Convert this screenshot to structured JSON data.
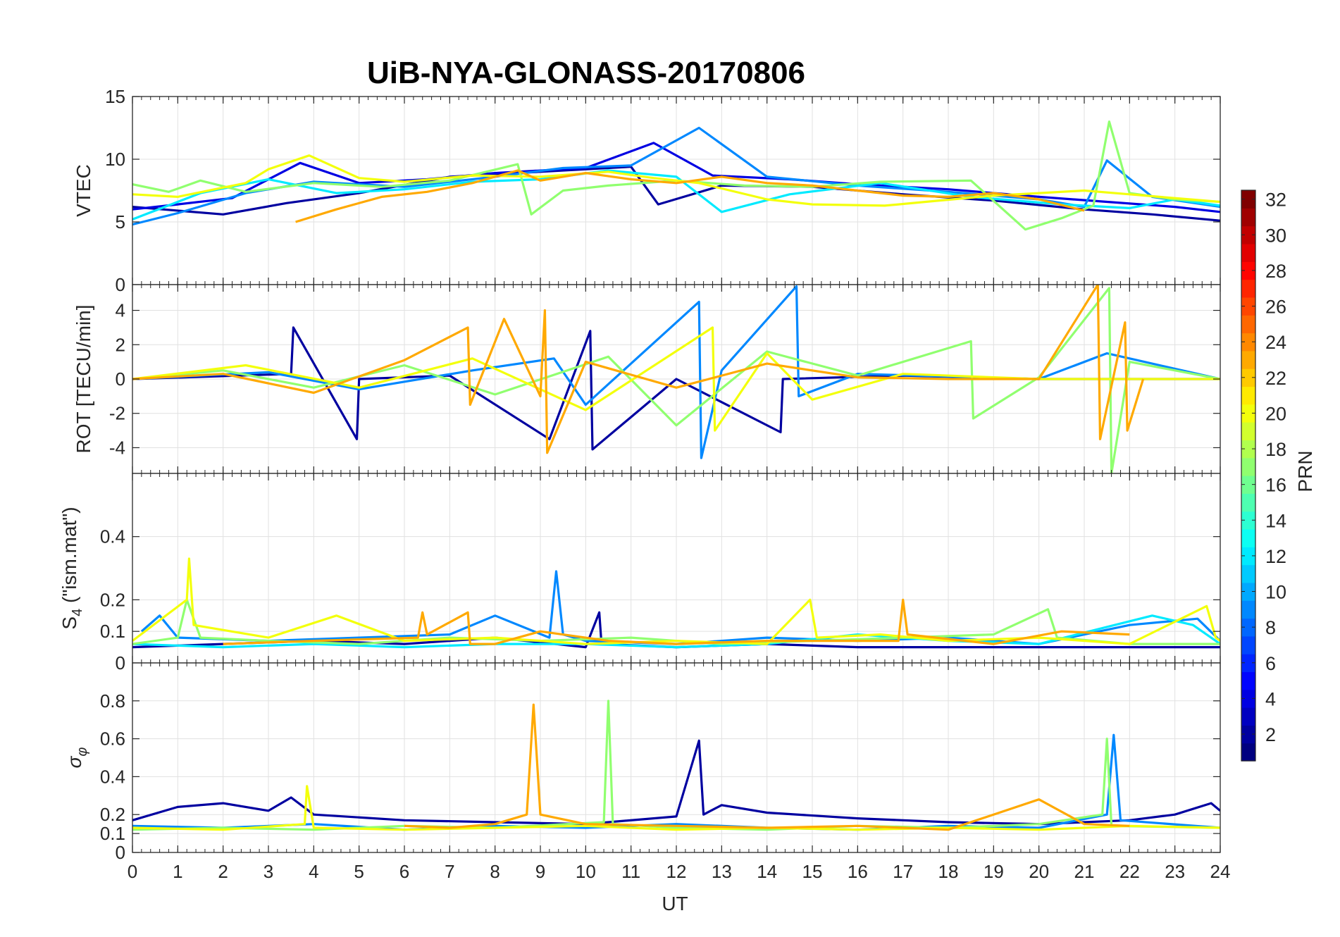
{
  "figure": {
    "title": "UiB-NYA-GLONASS-20170806",
    "xlabel": "UT"
  },
  "colorbar": {
    "label": "PRN",
    "range": [
      1,
      32
    ],
    "ticks": [
      2,
      4,
      6,
      8,
      10,
      12,
      14,
      16,
      18,
      20,
      22,
      24,
      26,
      28,
      30,
      32
    ],
    "colormap": "jet"
  },
  "chart_data": [
    {
      "type": "line",
      "panel": "vtec",
      "ylabel": "VTEC",
      "xlim": [
        0,
        24
      ],
      "ylim": [
        0,
        15
      ],
      "yticks": [
        0,
        5,
        10,
        15
      ],
      "xticks": [
        0,
        1,
        2,
        3,
        4,
        5,
        6,
        7,
        8,
        9,
        10,
        11,
        12,
        13,
        14,
        15,
        16,
        17,
        18,
        19,
        20,
        21,
        22,
        23,
        24
      ],
      "grid": true,
      "series": [
        {
          "prn": 2,
          "x": [
            0,
            2.0,
            3.4,
            5.0,
            7.0,
            9.0,
            11.0,
            11.6,
            13.0,
            15.0,
            17.0,
            19.0,
            21.0,
            22.5,
            24.0
          ],
          "y": [
            6.2,
            5.6,
            6.5,
            7.3,
            8.6,
            9.0,
            9.4,
            6.4,
            7.9,
            7.8,
            7.2,
            6.7,
            6.0,
            5.6,
            5.1
          ]
        },
        {
          "prn": 4,
          "x": [
            0,
            1.0,
            2.2,
            3.7,
            5.0,
            6.5,
            8.0,
            10.0,
            11.5,
            12.8,
            14.5,
            16.0,
            18.0,
            20.0,
            21.5,
            23.0,
            24.0
          ],
          "y": [
            6.0,
            6.4,
            6.9,
            9.7,
            8.1,
            8.4,
            8.9,
            9.3,
            11.3,
            8.7,
            8.4,
            8.0,
            7.6,
            7.0,
            6.6,
            6.2,
            5.8
          ]
        },
        {
          "prn": 9,
          "x": [
            0,
            1.0,
            2.5,
            4.0,
            6.0,
            8.0,
            9.5,
            11.0,
            12.5,
            14.0,
            16.0,
            18.0,
            20.0,
            21.0,
            21.5,
            22.5,
            24.0
          ],
          "y": [
            4.8,
            5.7,
            7.3,
            8.2,
            7.8,
            8.6,
            9.3,
            9.5,
            12.5,
            8.6,
            7.9,
            7.4,
            6.8,
            6.2,
            9.9,
            7.0,
            6.2
          ]
        },
        {
          "prn": 12,
          "x": [
            0,
            1.5,
            3.0,
            4.5,
            6.0,
            7.5,
            9.0,
            10.5,
            12.0,
            13.0,
            14.5,
            16.5,
            18.5,
            20.5,
            22.0,
            23.0,
            24.0
          ],
          "y": [
            5.2,
            7.3,
            8.4,
            7.3,
            7.6,
            8.2,
            8.4,
            9.1,
            8.6,
            5.8,
            7.2,
            8.1,
            7.0,
            6.4,
            6.1,
            6.8,
            6.3
          ]
        },
        {
          "prn": 17,
          "x": [
            0,
            0.8,
            1.5,
            2.5,
            4.0,
            5.5,
            7.0,
            8.5,
            8.8,
            9.5,
            10.5,
            12.0,
            13.5,
            15.0,
            16.5,
            18.5,
            19.7,
            20.5,
            21.2,
            21.55,
            22.0,
            23.0,
            24.0
          ],
          "y": [
            8.0,
            7.4,
            8.3,
            7.4,
            8.1,
            7.8,
            8.3,
            9.6,
            5.6,
            7.5,
            7.9,
            8.3,
            7.9,
            7.8,
            8.2,
            8.3,
            4.4,
            5.3,
            6.3,
            13.0,
            7.3,
            6.8,
            6.6
          ]
        },
        {
          "prn": 20,
          "x": [
            0,
            1.0,
            2.5,
            3.0,
            3.9,
            5.0,
            6.0,
            7.5,
            9.0,
            10.5,
            11.5,
            12.5,
            14.0,
            15.0,
            16.6,
            17.5,
            19.0,
            20.0,
            21.0,
            22.0,
            23.0,
            24.0
          ],
          "y": [
            7.2,
            7.0,
            8.1,
            9.2,
            10.3,
            8.5,
            8.2,
            8.7,
            8.6,
            9.0,
            8.5,
            8.1,
            6.8,
            6.4,
            6.3,
            6.6,
            7.1,
            7.3,
            7.5,
            7.2,
            6.9,
            6.6
          ]
        },
        {
          "prn": 23,
          "x": [
            3.6,
            4.5,
            5.5,
            6.5,
            7.5,
            8.5,
            9.0,
            10.0,
            11.0,
            12.0,
            13.0,
            14.0,
            15.0,
            16.0,
            17.0,
            18.0,
            19.0,
            20.0,
            21.0
          ],
          "y": [
            5.0,
            6.0,
            7.0,
            7.4,
            8.1,
            9.1,
            8.3,
            8.9,
            8.4,
            8.1,
            8.6,
            8.1,
            7.9,
            7.5,
            7.1,
            7.0,
            7.3,
            6.8,
            5.9
          ]
        }
      ]
    },
    {
      "type": "line",
      "panel": "rot",
      "ylabel": "ROT [TECU/min]",
      "xlim": [
        0,
        24
      ],
      "ylim": [
        -5.5,
        5.5
      ],
      "yticks": [
        -4,
        -2,
        0,
        2,
        4
      ],
      "grid": true,
      "series": [
        {
          "prn": 2,
          "x": [
            0,
            3.5,
            3.55,
            4.95,
            5.0,
            7.0,
            9.2,
            10.1,
            10.15,
            12.0,
            14.3,
            14.35,
            17.0,
            20.0,
            24.0
          ],
          "y": [
            0.0,
            0.3,
            3.0,
            -3.5,
            0.0,
            0.2,
            -3.5,
            2.8,
            -4.1,
            0.0,
            -3.1,
            0.0,
            0.2,
            0.0,
            0.0
          ]
        },
        {
          "prn": 9,
          "x": [
            0,
            3.0,
            5.0,
            7.5,
            9.3,
            10.0,
            12.5,
            12.55,
            13.0,
            14.65,
            14.7,
            16.0,
            20.0,
            21.5,
            24.0
          ],
          "y": [
            0.0,
            0.4,
            -0.6,
            0.5,
            1.2,
            -1.5,
            4.5,
            -4.6,
            0.5,
            5.4,
            -1.0,
            0.3,
            0.0,
            1.5,
            0.0
          ]
        },
        {
          "prn": 17,
          "x": [
            0,
            2.0,
            4.0,
            6.0,
            8.0,
            10.5,
            12.0,
            14.0,
            16.0,
            18.5,
            18.55,
            20.0,
            21.55,
            21.6,
            22.0,
            24.0
          ],
          "y": [
            0.0,
            0.5,
            -0.5,
            0.8,
            -0.9,
            1.3,
            -2.7,
            1.6,
            0.2,
            2.2,
            -2.3,
            0.1,
            5.3,
            -5.5,
            1.0,
            0.0
          ]
        },
        {
          "prn": 20,
          "x": [
            0,
            2.5,
            5.0,
            7.5,
            10.0,
            12.8,
            12.85,
            14.0,
            15.0,
            17.0,
            20.0,
            24.0
          ],
          "y": [
            0.0,
            0.8,
            -0.5,
            1.2,
            -1.8,
            3.0,
            -3.0,
            1.5,
            -1.2,
            0.3,
            0.0,
            0.0
          ]
        },
        {
          "prn": 23,
          "x": [
            0,
            2.0,
            4.0,
            6.0,
            7.4,
            7.45,
            8.2,
            9.0,
            9.1,
            9.15,
            10.0,
            12.0,
            14.0,
            16.0,
            18.0,
            20.0,
            21.3,
            21.35,
            21.9,
            21.95,
            22.3
          ],
          "y": [
            0.0,
            0.3,
            -0.8,
            1.1,
            3.0,
            -1.5,
            3.5,
            -1.0,
            4.0,
            -4.3,
            1.0,
            -0.5,
            0.9,
            0.1,
            0.0,
            0.0,
            5.5,
            -3.5,
            3.3,
            -3.0,
            0.0
          ]
        }
      ]
    },
    {
      "type": "line",
      "panel": "s4",
      "ylabel": "S4 (\"ism.mat\")",
      "xlim": [
        0,
        24
      ],
      "ylim": [
        0,
        0.6
      ],
      "yticks": [
        0,
        0.1,
        0.2,
        0.4
      ],
      "grid": true,
      "series": [
        {
          "prn": 2,
          "x": [
            0,
            2.0,
            4.0,
            6.0,
            8.0,
            10.0,
            10.3,
            10.35,
            12.0,
            14.0,
            16.0,
            18.0,
            20.0,
            22.0,
            24.0
          ],
          "y": [
            0.05,
            0.06,
            0.07,
            0.06,
            0.08,
            0.05,
            0.16,
            0.06,
            0.05,
            0.06,
            0.05,
            0.05,
            0.05,
            0.05,
            0.05
          ]
        },
        {
          "prn": 9,
          "x": [
            0.2,
            0.6,
            1.0,
            3.0,
            5.0,
            7.0,
            8.0,
            9.2,
            9.35,
            9.5,
            10.0,
            12.0,
            14.0,
            16.0,
            18.0,
            20.0,
            22.0,
            23.5,
            24.0
          ],
          "y": [
            0.1,
            0.15,
            0.08,
            0.07,
            0.08,
            0.09,
            0.15,
            0.08,
            0.29,
            0.09,
            0.07,
            0.06,
            0.08,
            0.07,
            0.08,
            0.06,
            0.12,
            0.14,
            0.07
          ]
        },
        {
          "prn": 12,
          "x": [
            0,
            2.0,
            4.0,
            6.0,
            8.0,
            10.0,
            12.0,
            14.0,
            16.0,
            18.0,
            20.0,
            22.5,
            23.4,
            24.0
          ],
          "y": [
            0.06,
            0.05,
            0.06,
            0.05,
            0.06,
            0.06,
            0.05,
            0.06,
            0.09,
            0.07,
            0.06,
            0.15,
            0.12,
            0.06
          ]
        },
        {
          "prn": 17,
          "x": [
            0,
            1.0,
            1.2,
            1.5,
            3.0,
            5.0,
            7.0,
            9.0,
            11.0,
            13.0,
            15.0,
            17.0,
            19.0,
            20.2,
            20.4,
            22.0,
            24.0
          ],
          "y": [
            0.06,
            0.08,
            0.2,
            0.08,
            0.07,
            0.06,
            0.08,
            0.07,
            0.08,
            0.06,
            0.07,
            0.08,
            0.09,
            0.17,
            0.08,
            0.06,
            0.06
          ]
        },
        {
          "prn": 20,
          "x": [
            0,
            1.2,
            1.25,
            1.35,
            3.0,
            4.5,
            6.0,
            8.0,
            10.0,
            12.0,
            14.0,
            14.95,
            15.1,
            16.5,
            18.0,
            20.0,
            22.0,
            23.7,
            23.9,
            24.0
          ],
          "y": [
            0.07,
            0.2,
            0.33,
            0.12,
            0.08,
            0.15,
            0.07,
            0.08,
            0.06,
            0.07,
            0.06,
            0.2,
            0.08,
            0.09,
            0.07,
            0.08,
            0.06,
            0.18,
            0.08,
            0.07
          ]
        },
        {
          "prn": 23,
          "x": [
            2.0,
            4.0,
            6.3,
            6.4,
            6.5,
            7.4,
            7.45,
            8.0,
            9.0,
            10.5,
            12.0,
            14.0,
            16.9,
            17.0,
            17.1,
            19.0,
            20.5,
            22.0
          ],
          "y": [
            0.06,
            0.07,
            0.08,
            0.16,
            0.09,
            0.16,
            0.06,
            0.06,
            0.1,
            0.07,
            0.06,
            0.07,
            0.07,
            0.2,
            0.09,
            0.06,
            0.1,
            0.09
          ]
        }
      ]
    },
    {
      "type": "line",
      "panel": "sigma_phi",
      "ylabel": "σφ",
      "xlim": [
        0,
        24
      ],
      "ylim": [
        0,
        1
      ],
      "yticks": [
        0,
        0.1,
        0.2,
        0.4,
        0.6,
        0.8
      ],
      "grid": true,
      "series": [
        {
          "prn": 2,
          "x": [
            0,
            1.0,
            2.0,
            3.0,
            3.5,
            4.0,
            6.0,
            8.0,
            10.0,
            12.0,
            12.5,
            12.6,
            13.0,
            14.0,
            16.0,
            18.0,
            20.0,
            22.0,
            23.0,
            23.8,
            24.0
          ],
          "y": [
            0.17,
            0.24,
            0.26,
            0.22,
            0.29,
            0.2,
            0.17,
            0.16,
            0.15,
            0.19,
            0.59,
            0.2,
            0.25,
            0.21,
            0.18,
            0.16,
            0.15,
            0.17,
            0.2,
            0.26,
            0.22
          ]
        },
        {
          "prn": 9,
          "x": [
            0,
            2.0,
            4.0,
            6.0,
            8.0,
            10.0,
            12.0,
            14.0,
            16.0,
            18.0,
            20.0,
            21.5,
            21.65,
            21.8,
            24.0
          ],
          "y": [
            0.14,
            0.13,
            0.15,
            0.12,
            0.14,
            0.13,
            0.15,
            0.13,
            0.12,
            0.14,
            0.13,
            0.2,
            0.62,
            0.17,
            0.13
          ]
        },
        {
          "prn": 17,
          "x": [
            0,
            2.0,
            4.0,
            6.0,
            8.0,
            10.4,
            10.5,
            10.6,
            12.0,
            14.0,
            16.0,
            18.0,
            20.0,
            21.4,
            21.5,
            21.6,
            24.0
          ],
          "y": [
            0.12,
            0.13,
            0.12,
            0.14,
            0.13,
            0.16,
            0.8,
            0.15,
            0.13,
            0.12,
            0.14,
            0.13,
            0.15,
            0.2,
            0.6,
            0.14,
            0.13
          ]
        },
        {
          "prn": 20,
          "x": [
            0,
            2.0,
            3.8,
            3.85,
            4.0,
            6.0,
            8.0,
            10.0,
            12.0,
            14.0,
            16.0,
            18.0,
            20.0,
            22.0,
            24.0
          ],
          "y": [
            0.13,
            0.12,
            0.15,
            0.35,
            0.13,
            0.12,
            0.13,
            0.14,
            0.12,
            0.13,
            0.12,
            0.13,
            0.12,
            0.14,
            0.13
          ]
        },
        {
          "prn": 23,
          "x": [
            6.0,
            7.0,
            8.0,
            8.7,
            8.85,
            9.0,
            10.0,
            12.0,
            14.0,
            16.0,
            18.0,
            20.0,
            21.0,
            22.0
          ],
          "y": [
            0.14,
            0.13,
            0.15,
            0.2,
            0.78,
            0.2,
            0.15,
            0.14,
            0.13,
            0.14,
            0.12,
            0.28,
            0.15,
            0.14
          ]
        }
      ]
    }
  ]
}
